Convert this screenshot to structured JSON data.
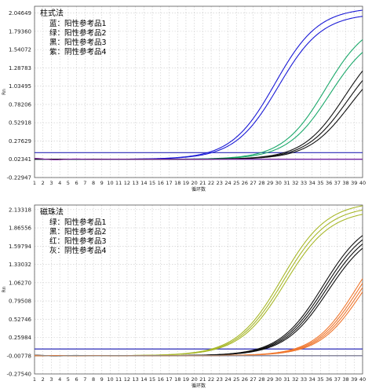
{
  "chart_data": [
    {
      "type": "line",
      "title": "柱式法",
      "legend": [
        "蓝：阳性参考品1",
        "绿：阳性参考品2",
        "黑：阳性参考品3",
        "紫：阴性参考品4"
      ],
      "xlabel": "循环数",
      "ylabel": "Rn",
      "xlim": [
        1,
        40
      ],
      "ylim": [
        -0.22947,
        2.14
      ],
      "yticks": [
        "2.04649",
        "1.79360",
        "1.54072",
        "1.28783",
        "1.03495",
        "0.78206",
        "0.52918",
        "0.27629",
        "0.02341",
        "-0.22947"
      ],
      "ytick_values": [
        2.04649,
        1.7936,
        1.54072,
        1.28783,
        1.03495,
        0.78206,
        0.52918,
        0.27629,
        0.02341,
        -0.22947
      ],
      "xticks": [
        1,
        2,
        3,
        4,
        5,
        6,
        7,
        8,
        9,
        10,
        11,
        12,
        13,
        14,
        15,
        16,
        17,
        18,
        19,
        20,
        21,
        22,
        23,
        24,
        25,
        26,
        27,
        28,
        29,
        30,
        31,
        32,
        33,
        34,
        35,
        36,
        37,
        38,
        39,
        40
      ],
      "threshold": 0.115,
      "baseline": 0.02341,
      "series": [
        {
          "color": "#1a1ad6",
          "curves": [
            {
              "ct": 29.6,
              "max": 2.1,
              "slope": 2.6
            },
            {
              "ct": 30.0,
              "max": 2.02,
              "slope": 2.6
            }
          ]
        },
        {
          "color": "#1aa86a",
          "curves": [
            {
              "ct": 35.6,
              "max": 1.95,
              "slope": 2.55
            },
            {
              "ct": 36.1,
              "max": 1.8,
              "slope": 2.55
            }
          ]
        },
        {
          "color": "#111111",
          "curves": [
            {
              "ct": 37.9,
              "max": 1.75,
              "slope": 2.5
            },
            {
              "ct": 38.2,
              "max": 1.62,
              "slope": 2.5
            },
            {
              "ct": 38.5,
              "max": 1.5,
              "slope": 2.5
            }
          ]
        },
        {
          "color": "#7a1a9a",
          "curves": [
            {
              "ct": 0,
              "max": 0,
              "slope": 1
            }
          ]
        }
      ]
    },
    {
      "type": "line",
      "title": "磁珠法",
      "legend": [
        "绿：阳性参考品1",
        "黑：阳性参考品2",
        "红：阳性参考品3",
        "灰：阴性参考品4"
      ],
      "xlabel": "循环数",
      "ylabel": "Rn",
      "xlim": [
        1,
        40
      ],
      "ylim": [
        -0.2754,
        2.2
      ],
      "yticks": [
        "2.13318",
        "1.86556",
        "1.59794",
        "1.33032",
        "1.06270",
        "0.79508",
        "0.52746",
        "0.25984",
        "-0.00778",
        "-0.27540"
      ],
      "ytick_values": [
        2.13318,
        1.86556,
        1.59794,
        1.33032,
        1.0627,
        0.79508,
        0.52746,
        0.25984,
        -0.00778,
        -0.2754
      ],
      "xticks": [
        1,
        2,
        3,
        4,
        5,
        6,
        7,
        8,
        9,
        10,
        11,
        12,
        13,
        14,
        15,
        16,
        17,
        18,
        19,
        20,
        21,
        22,
        23,
        24,
        25,
        26,
        27,
        28,
        29,
        30,
        31,
        32,
        33,
        34,
        35,
        36,
        37,
        38,
        39,
        40
      ],
      "threshold": 0.09,
      "baseline": -0.00778,
      "series": [
        {
          "color": "#a8b82a",
          "curves": [
            {
              "ct": 30.4,
              "max": 2.26,
              "slope": 2.7
            },
            {
              "ct": 30.6,
              "max": 2.2,
              "slope": 2.7
            },
            {
              "ct": 30.8,
              "max": 2.14,
              "slope": 2.7
            }
          ]
        },
        {
          "color": "#111111",
          "curves": [
            {
              "ct": 35.3,
              "max": 2.05,
              "slope": 2.6
            },
            {
              "ct": 35.5,
              "max": 2.0,
              "slope": 2.6
            },
            {
              "ct": 35.7,
              "max": 1.95,
              "slope": 2.6
            },
            {
              "ct": 35.9,
              "max": 1.9,
              "slope": 2.6
            }
          ]
        },
        {
          "color": "#f07830",
          "curves": [
            {
              "ct": 39.2,
              "max": 1.95,
              "slope": 2.5
            },
            {
              "ct": 39.4,
              "max": 1.9,
              "slope": 2.5
            },
            {
              "ct": 39.6,
              "max": 1.85,
              "slope": 2.5
            },
            {
              "ct": 39.8,
              "max": 1.8,
              "slope": 2.5
            }
          ]
        },
        {
          "color": "#888888",
          "curves": [
            {
              "ct": 0,
              "max": 0,
              "slope": 1
            }
          ]
        }
      ]
    }
  ]
}
